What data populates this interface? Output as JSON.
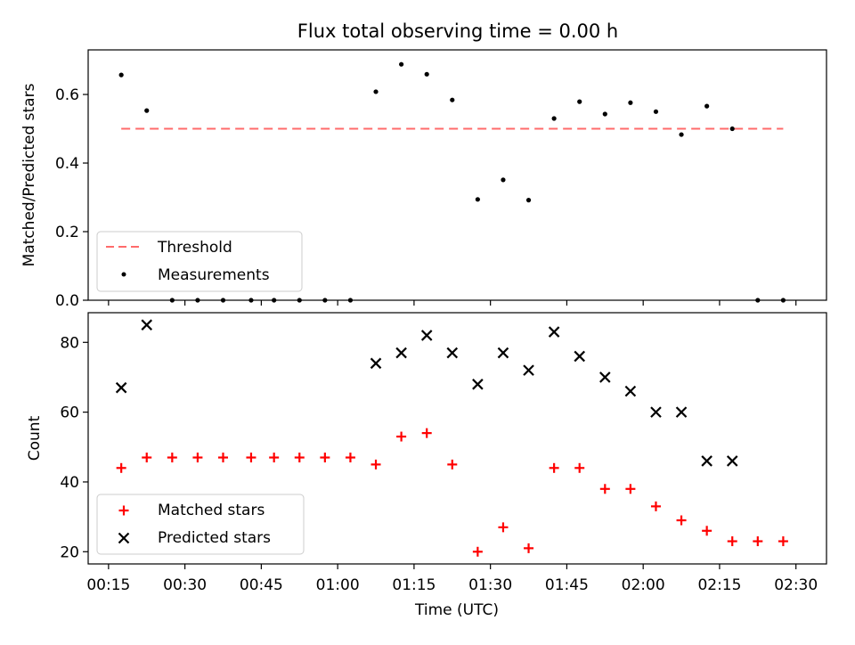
{
  "title": "Flux total observing time = 0.00 h",
  "chart_data": [
    {
      "type": "scatter",
      "panel": "top",
      "title": "Flux total observing time = 0.00 h",
      "xlabel": "",
      "ylabel": "Matched/Predicted stars",
      "xlim_minutes": [
        11,
        156
      ],
      "ylim": [
        0.0,
        0.73
      ],
      "yticks": [
        0.0,
        0.2,
        0.4,
        0.6
      ],
      "ytick_labels": [
        "0.0",
        "0.2",
        "0.4",
        "0.6"
      ],
      "legend_position": "lower-left",
      "threshold": {
        "name": "Threshold",
        "value": 0.5,
        "x_range": [
          "00:17:30",
          "02:27:30"
        ],
        "color": "#ff6b6b"
      },
      "series": [
        {
          "name": "Measurements",
          "color": "#000000",
          "x": [
            "00:17:30",
            "00:22:30",
            "00:27:30",
            "00:32:30",
            "00:37:30",
            "00:43:00",
            "00:47:30",
            "00:52:30",
            "00:57:30",
            "01:02:30",
            "01:07:30",
            "01:12:30",
            "01:17:30",
            "01:22:30",
            "01:27:30",
            "01:32:30",
            "01:37:30",
            "01:42:30",
            "01:47:30",
            "01:52:30",
            "01:57:30",
            "02:02:30",
            "02:07:30",
            "02:12:30",
            "02:17:30",
            "02:22:30",
            "02:27:30"
          ],
          "values": [
            0.657,
            0.553,
            0.0,
            0.0,
            0.0,
            0.0,
            0.0,
            0.0,
            0.0,
            0.0,
            0.608,
            0.688,
            0.659,
            0.584,
            0.294,
            0.351,
            0.292,
            0.53,
            0.579,
            0.543,
            0.576,
            0.55,
            0.483,
            0.566,
            0.5,
            0.0,
            0.0
          ]
        }
      ]
    },
    {
      "type": "scatter",
      "panel": "bottom",
      "xlabel": "Time (UTC)",
      "ylabel": "Count",
      "xlim_minutes": [
        11,
        156
      ],
      "ylim": [
        16.5,
        88.5
      ],
      "yticks": [
        20,
        40,
        60,
        80
      ],
      "ytick_labels": [
        "20",
        "40",
        "60",
        "80"
      ],
      "xticks_minutes": [
        15,
        30,
        45,
        60,
        75,
        90,
        105,
        120,
        135,
        150
      ],
      "xtick_labels": [
        "00:15",
        "00:30",
        "00:45",
        "01:00",
        "01:15",
        "01:30",
        "01:45",
        "02:00",
        "02:15",
        "02:30"
      ],
      "legend_position": "lower-left",
      "series": [
        {
          "name": "Matched stars",
          "marker": "plus",
          "color": "#ff0000",
          "x": [
            "00:17:30",
            "00:22:30",
            "00:27:30",
            "00:32:30",
            "00:37:30",
            "00:43:00",
            "00:47:30",
            "00:52:30",
            "00:57:30",
            "01:02:30",
            "01:07:30",
            "01:12:30",
            "01:17:30",
            "01:22:30",
            "01:27:30",
            "01:32:30",
            "01:37:30",
            "01:42:30",
            "01:47:30",
            "01:52:30",
            "01:57:30",
            "02:02:30",
            "02:07:30",
            "02:12:30",
            "02:17:30",
            "02:22:30",
            "02:27:30"
          ],
          "values": [
            44,
            47,
            47,
            47,
            47,
            47,
            47,
            47,
            47,
            47,
            45,
            53,
            54,
            45,
            20,
            27,
            21,
            44,
            44,
            38,
            38,
            33,
            29,
            26,
            23,
            23,
            23
          ]
        },
        {
          "name": "Predicted stars",
          "marker": "x",
          "color": "#000000",
          "x": [
            "00:17:30",
            "00:22:30",
            "01:07:30",
            "01:12:30",
            "01:17:30",
            "01:22:30",
            "01:27:30",
            "01:32:30",
            "01:37:30",
            "01:42:30",
            "01:47:30",
            "01:52:30",
            "01:57:30",
            "02:02:30",
            "02:07:30",
            "02:12:30",
            "02:17:30"
          ],
          "values": [
            67,
            85,
            74,
            77,
            82,
            77,
            68,
            77,
            72,
            83,
            76,
            70,
            66,
            60,
            60,
            46,
            46
          ]
        }
      ]
    }
  ]
}
